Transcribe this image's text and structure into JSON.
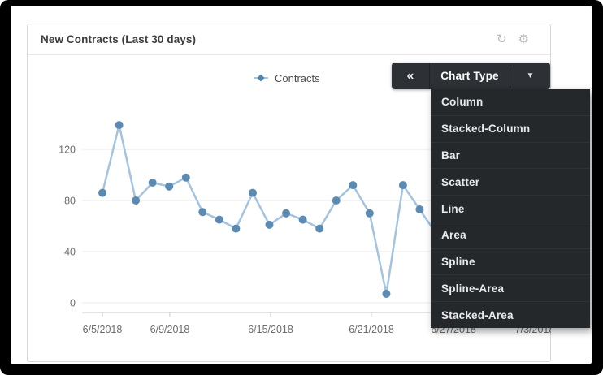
{
  "card": {
    "title": "New Contracts (Last 30 days)",
    "icons": [
      {
        "name": "refresh-icon",
        "glyph": "↻"
      },
      {
        "name": "gear-icon",
        "glyph": "⚙"
      }
    ]
  },
  "toolbar": {
    "collapse_label": "«",
    "button_label": "Chart Type",
    "dropdown_arrow": "▼",
    "bg_color": "#2d3135",
    "text_color": "#fafafa"
  },
  "dropdown": {
    "bg_color": "#25282b",
    "text_color": "#e9eaeb",
    "items": [
      "Column",
      "Stacked-Column",
      "Bar",
      "Scatter",
      "Line",
      "Area",
      "Spline",
      "Spline-Area",
      "Stacked-Area"
    ]
  },
  "chart_data": {
    "type": "line",
    "title": "New Contracts (Last 30 days)",
    "x": [
      "6/5/2018",
      "6/6/2018",
      "6/7/2018",
      "6/8/2018",
      "6/9/2018",
      "6/10/2018",
      "6/11/2018",
      "6/12/2018",
      "6/13/2018",
      "6/14/2018",
      "6/15/2018",
      "6/16/2018",
      "6/17/2018",
      "6/18/2018",
      "6/19/2018",
      "6/20/2018",
      "6/21/2018",
      "6/22/2018",
      "6/23/2018",
      "6/24/2018"
    ],
    "series": [
      {
        "name": "Contracts",
        "values": [
          86,
          139,
          80,
          94,
          91,
          98,
          71,
          65,
          58,
          86,
          61,
          70,
          65,
          58,
          80,
          92,
          70,
          7,
          92,
          73
        ]
      }
    ],
    "x_tick_labels": [
      "6/5/2018",
      "6/9/2018",
      "6/15/2018",
      "6/21/2018",
      "6/27/2018",
      "7/3/2018"
    ],
    "y_ticks": [
      0,
      40,
      80,
      120
    ],
    "ylim": [
      0,
      150
    ],
    "legend_position": "top",
    "grid": "horizontal-only",
    "occluded_by_dropdown": true,
    "colors": {
      "line": "#a4c3df",
      "marker": "#5b8bb2",
      "axis_text": "#6d6d6d",
      "grid": "#e9e9e9",
      "axis_line": "#c9c9c9"
    }
  }
}
